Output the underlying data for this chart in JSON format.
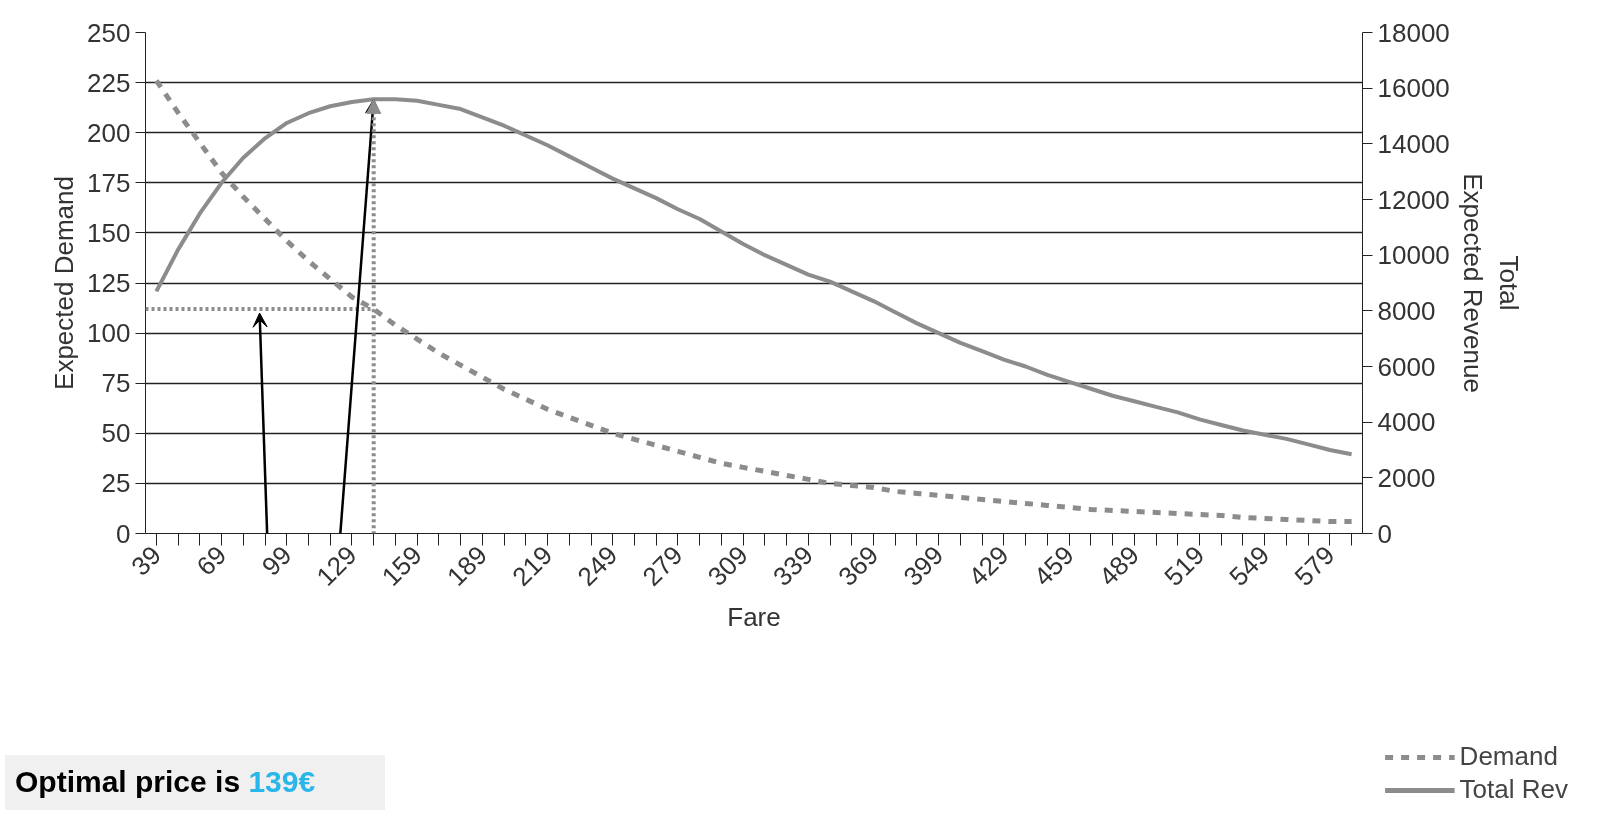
{
  "chart_data": {
    "type": "line",
    "xlabel": "Fare",
    "ylabel": "Expected Demand",
    "y2label": "Total\nExpected Revenue",
    "x": [
      39,
      49,
      59,
      69,
      79,
      89,
      99,
      109,
      119,
      129,
      139,
      149,
      159,
      169,
      179,
      189,
      199,
      209,
      219,
      229,
      239,
      249,
      259,
      269,
      279,
      289,
      299,
      309,
      319,
      329,
      339,
      349,
      359,
      369,
      379,
      389,
      399,
      409,
      419,
      429,
      439,
      449,
      459,
      469,
      479,
      489,
      499,
      509,
      519,
      529,
      539,
      549,
      559,
      569,
      579,
      589
    ],
    "xlim": [
      34,
      594
    ],
    "xticks": [
      39,
      {
        "value": 49,
        "label": null
      },
      {
        "value": 59,
        "label": null
      },
      69,
      {
        "value": 79,
        "label": null
      },
      {
        "value": 89,
        "label": null
      },
      99,
      {
        "value": 109,
        "label": null
      },
      {
        "value": 119,
        "label": null
      },
      129,
      {
        "value": 139,
        "label": null
      },
      {
        "value": 149,
        "label": null
      },
      159,
      {
        "value": 169,
        "label": null
      },
      {
        "value": 179,
        "label": null
      },
      189,
      {
        "value": 199,
        "label": null
      },
      {
        "value": 209,
        "label": null
      },
      219,
      {
        "value": 229,
        "label": null
      },
      {
        "value": 239,
        "label": null
      },
      249,
      {
        "value": 259,
        "label": null
      },
      {
        "value": 269,
        "label": null
      },
      279,
      {
        "value": 289,
        "label": null
      },
      {
        "value": 299,
        "label": null
      },
      309,
      {
        "value": 319,
        "label": null
      },
      {
        "value": 329,
        "label": null
      },
      339,
      {
        "value": 349,
        "label": null
      },
      {
        "value": 359,
        "label": null
      },
      369,
      {
        "value": 379,
        "label": null
      },
      {
        "value": 389,
        "label": null
      },
      399,
      {
        "value": 409,
        "label": null
      },
      {
        "value": 419,
        "label": null
      },
      429,
      {
        "value": 439,
        "label": null
      },
      {
        "value": 449,
        "label": null
      },
      459,
      {
        "value": 469,
        "label": null
      },
      {
        "value": 479,
        "label": null
      },
      489,
      {
        "value": 499,
        "label": null
      },
      {
        "value": 509,
        "label": null
      },
      519,
      {
        "value": 529,
        "label": null
      },
      {
        "value": 539,
        "label": null
      },
      549,
      {
        "value": 559,
        "label": null
      },
      {
        "value": 569,
        "label": null
      },
      579,
      {
        "value": 589,
        "label": null
      }
    ],
    "ylim": [
      0,
      250
    ],
    "yticks": [
      0,
      25,
      50,
      75,
      100,
      125,
      150,
      175,
      200,
      225,
      250
    ],
    "y2lim": [
      0,
      18000
    ],
    "y2ticks": [
      0,
      2000,
      4000,
      6000,
      8000,
      10000,
      12000,
      14000,
      16000,
      18000
    ],
    "grid": "y",
    "legend": "bottom right",
    "series": [
      {
        "name": "Demand",
        "color": "#8c8c8c",
        "line_style": "dashed",
        "values": [
          226,
          210,
          195,
          180,
          168,
          157,
          146,
          136,
          127,
          118,
          112,
          104,
          97,
          90,
          84,
          78,
          72,
          67,
          62,
          58,
          54,
          50,
          47,
          44,
          41,
          38,
          35,
          33,
          31,
          29,
          27,
          25,
          24,
          23,
          21,
          20,
          19,
          18,
          17,
          16,
          15,
          14,
          13,
          12,
          11.5,
          11,
          10.5,
          10,
          9.5,
          9,
          8,
          7.5,
          7,
          6.5,
          6,
          6
        ]
      },
      {
        "name": "Total Rev",
        "color": "#8c8c8c",
        "line_style": "solid",
        "axis": "y2",
        "values": [
          8700,
          10200,
          11500,
          12600,
          13500,
          14200,
          14750,
          15100,
          15350,
          15500,
          15600,
          15600,
          15550,
          15400,
          15250,
          14950,
          14650,
          14300,
          13950,
          13550,
          13150,
          12750,
          12400,
          12050,
          11650,
          11300,
          10850,
          10400,
          10000,
          9650,
          9300,
          9050,
          8700,
          8350,
          7950,
          7550,
          7200,
          6850,
          6550,
          6250,
          6000,
          5700,
          5450,
          5200,
          4950,
          4750,
          4550,
          4350,
          4100,
          3900,
          3700,
          3550,
          3400,
          3200,
          3000,
          2850
        ]
      }
    ],
    "ref_lines": [
      {
        "axis": "x",
        "value": 139,
        "color": "#8c8c8c",
        "line_style": "dotted"
      },
      {
        "axis": "y",
        "value": 112,
        "color": "#8c8c8c",
        "line_style": "dotted"
      }
    ],
    "annotations": [
      "Optimal price is 139€"
    ]
  }
}
